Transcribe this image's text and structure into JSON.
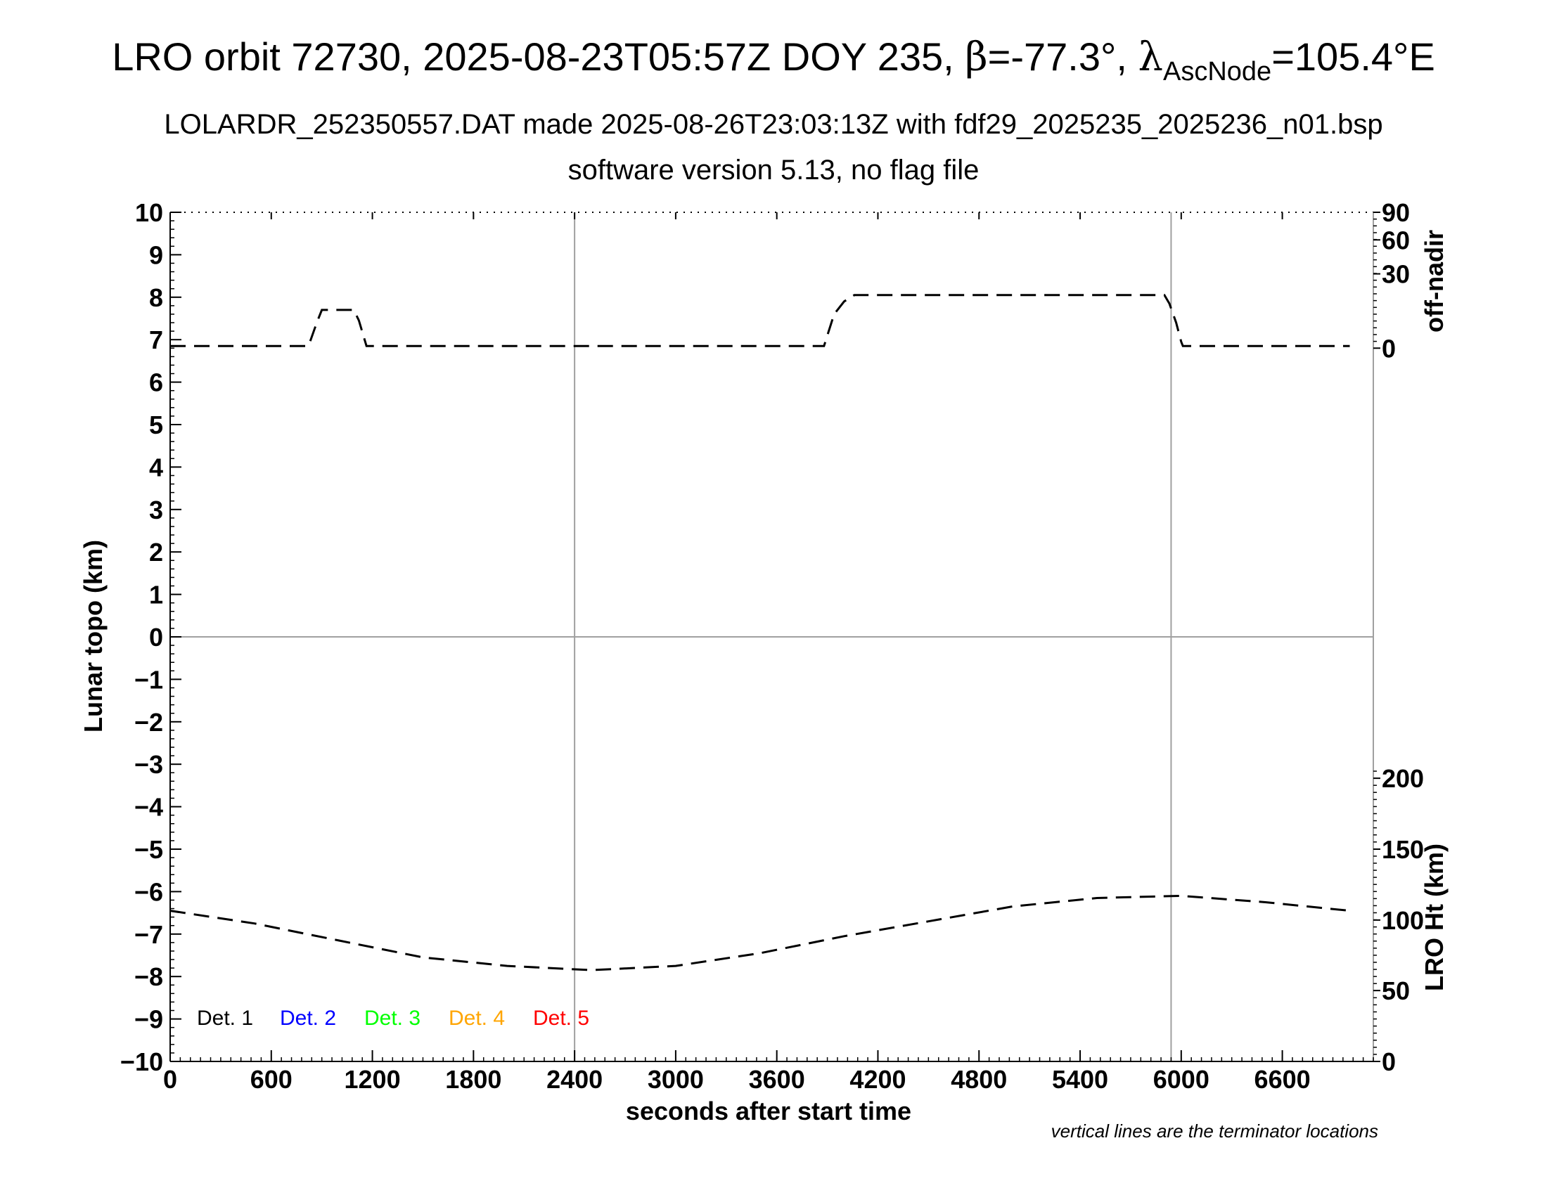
{
  "title": {
    "prefix": "LRO orbit 72730, 2025-08-23T05:57Z DOY 235, ",
    "beta_symbol": "β",
    "beta_value": "=-77.3°, ",
    "lambda_symbol": "λ",
    "lambda_subscript": "AscNode",
    "lambda_value": "=105.4°E"
  },
  "subtitle": "LOLARDR_252350557.DAT made 2025-08-26T23:03:13Z with fdf29_2025235_2025236_n01.bsp",
  "subtitle2": "software version 5.13, no flag file",
  "footnote": "vertical lines are the terminator locations",
  "chart_data": {
    "type": "line",
    "xlabel": "seconds after start time",
    "ylabel_left": "Lunar topo (km)",
    "ylabel_right_top": "off-nadir",
    "ylabel_right_bottom": "LRO Ht (km)",
    "xlim": [
      0,
      7140
    ],
    "ylim_left": [
      -10,
      10
    ],
    "x_ticks": [
      0,
      600,
      1200,
      1800,
      2400,
      3000,
      3600,
      4200,
      4800,
      5400,
      6000,
      6600
    ],
    "y_ticks_left": [
      "10",
      "9",
      "8",
      "7",
      "6",
      "5",
      "4",
      "3",
      "2",
      "1",
      "0",
      "−1",
      "−2",
      "−3",
      "−4",
      "−5",
      "−6",
      "−7",
      "−8",
      "−9",
      "−10"
    ],
    "y_tick_values_left": [
      10,
      9,
      8,
      7,
      6,
      5,
      4,
      3,
      2,
      1,
      0,
      -1,
      -2,
      -3,
      -4,
      -5,
      -6,
      -7,
      -8,
      -9,
      -10
    ],
    "right_top_ticks": [
      {
        "label": "90",
        "topo_equiv": 10
      },
      {
        "label": "60",
        "topo_equiv": 9.35
      },
      {
        "label": "30",
        "topo_equiv": 8.55
      },
      {
        "label": "0",
        "topo_equiv": 6.8
      }
    ],
    "right_bottom_ticks": [
      {
        "label": "200",
        "topo_equiv": -3.33
      },
      {
        "label": "150",
        "topo_equiv": -5.0
      },
      {
        "label": "100",
        "topo_equiv": -6.67
      },
      {
        "label": "50",
        "topo_equiv": -8.33
      },
      {
        "label": "0",
        "topo_equiv": -10
      }
    ],
    "terminator_lines_x": [
      2400,
      5940
    ],
    "zero_line_y": 0,
    "legend": [
      {
        "label": "Det. 1",
        "color": "#000000"
      },
      {
        "label": "Det. 2",
        "color": "#0000ff"
      },
      {
        "label": "Det. 3",
        "color": "#00ff00"
      },
      {
        "label": "Det. 4",
        "color": "#ffa500"
      },
      {
        "label": "Det. 5",
        "color": "#ff0000"
      }
    ],
    "series": [
      {
        "name": "off-nadir",
        "style": "dashed",
        "x": [
          0,
          820,
          830,
          870,
          900,
          1090,
          1120,
          1150,
          1165,
          1180,
          3880,
          3900,
          3940,
          4000,
          4060,
          5900,
          5930,
          5970,
          6000,
          6010,
          7000
        ],
        "y": [
          6.85,
          6.85,
          6.95,
          7.4,
          7.7,
          7.7,
          7.45,
          7.05,
          6.85,
          6.85,
          6.85,
          7.1,
          7.6,
          7.9,
          8.05,
          8.05,
          7.85,
          7.4,
          6.95,
          6.85,
          6.85
        ]
      },
      {
        "name": "LRO Ht",
        "style": "dashed",
        "x": [
          0,
          500,
          1000,
          1500,
          2000,
          2500,
          3000,
          3500,
          4000,
          4500,
          5000,
          5500,
          6000,
          6500,
          7000
        ],
        "y": [
          -6.45,
          -6.75,
          -7.15,
          -7.55,
          -7.75,
          -7.85,
          -7.75,
          -7.45,
          -7.05,
          -6.7,
          -6.35,
          -6.15,
          -6.1,
          -6.25,
          -6.45
        ]
      }
    ]
  }
}
